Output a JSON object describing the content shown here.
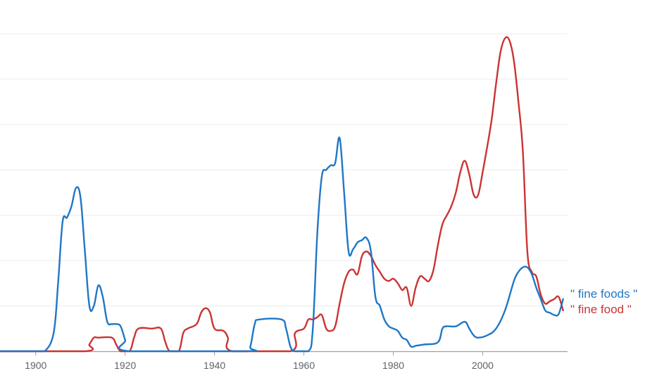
{
  "chart_data": {
    "type": "line",
    "title": "",
    "xlabel": "",
    "ylabel": "",
    "xlim": [
      1892,
      2019
    ],
    "ylim": [
      0,
      7
    ],
    "x_ticks": [
      1900,
      1920,
      1940,
      1960,
      1980,
      2000
    ],
    "y_gridlines": [
      1,
      2,
      3,
      4,
      5,
      6,
      7
    ],
    "y_tick_labels_visible": false,
    "grid": "horizontal",
    "legend_placement": "right-end-of-lines",
    "colors": {
      "fine_foods": "#1f77c6",
      "fine_food": "#cc3333"
    },
    "series": [
      {
        "name": "\" fine foods \"",
        "color": "#1f77c6",
        "points": [
          [
            1892,
            0.0
          ],
          [
            1900,
            0.0
          ],
          [
            1902,
            0.0
          ],
          [
            1904,
            0.4
          ],
          [
            1905,
            1.5
          ],
          [
            1906,
            2.85
          ],
          [
            1907,
            2.95
          ],
          [
            1908,
            3.2
          ],
          [
            1909,
            3.6
          ],
          [
            1910,
            3.4
          ],
          [
            1911,
            2.2
          ],
          [
            1912,
            1.0
          ],
          [
            1913,
            1.0
          ],
          [
            1914,
            1.45
          ],
          [
            1915,
            1.2
          ],
          [
            1916,
            0.65
          ],
          [
            1917,
            0.6
          ],
          [
            1918,
            0.6
          ],
          [
            1919,
            0.55
          ],
          [
            1920,
            0.25
          ],
          [
            1921,
            0.0
          ],
          [
            1947,
            0.0
          ],
          [
            1948,
            0.1
          ],
          [
            1949,
            0.6
          ],
          [
            1950,
            0.7
          ],
          [
            1955,
            0.7
          ],
          [
            1956,
            0.5
          ],
          [
            1957,
            0.1
          ],
          [
            1958,
            0.0
          ],
          [
            1961,
            0.0
          ],
          [
            1962,
            0.5
          ],
          [
            1963,
            2.6
          ],
          [
            1964,
            3.85
          ],
          [
            1965,
            4.0
          ],
          [
            1966,
            4.1
          ],
          [
            1967,
            4.15
          ],
          [
            1968,
            4.7
          ],
          [
            1969,
            3.5
          ],
          [
            1970,
            2.2
          ],
          [
            1971,
            2.25
          ],
          [
            1972,
            2.4
          ],
          [
            1973,
            2.45
          ],
          [
            1974,
            2.5
          ],
          [
            1975,
            2.2
          ],
          [
            1976,
            1.2
          ],
          [
            1977,
            1.0
          ],
          [
            1978,
            0.7
          ],
          [
            1979,
            0.55
          ],
          [
            1980,
            0.5
          ],
          [
            1981,
            0.45
          ],
          [
            1982,
            0.3
          ],
          [
            1983,
            0.25
          ],
          [
            1984,
            0.1
          ],
          [
            1985,
            0.12
          ],
          [
            1987,
            0.15
          ],
          [
            1990,
            0.2
          ],
          [
            1991,
            0.5
          ],
          [
            1992,
            0.55
          ],
          [
            1994,
            0.55
          ],
          [
            1996,
            0.65
          ],
          [
            1997,
            0.5
          ],
          [
            1998,
            0.35
          ],
          [
            1999,
            0.3
          ],
          [
            2001,
            0.35
          ],
          [
            2003,
            0.5
          ],
          [
            2005,
            0.9
          ],
          [
            2007,
            1.55
          ],
          [
            2008,
            1.75
          ],
          [
            2009,
            1.85
          ],
          [
            2010,
            1.85
          ],
          [
            2011,
            1.7
          ],
          [
            2012,
            1.4
          ],
          [
            2013,
            1.15
          ],
          [
            2014,
            0.9
          ],
          [
            2015,
            0.85
          ],
          [
            2016,
            0.8
          ],
          [
            2017,
            0.82
          ],
          [
            2018,
            1.15
          ]
        ]
      },
      {
        "name": "\" fine food \"",
        "color": "#cc3333",
        "points": [
          [
            1892,
            0.0
          ],
          [
            1911,
            0.0
          ],
          [
            1912,
            0.15
          ],
          [
            1913,
            0.3
          ],
          [
            1914,
            0.3
          ],
          [
            1917,
            0.3
          ],
          [
            1918,
            0.15
          ],
          [
            1919,
            0.0
          ],
          [
            1921,
            0.0
          ],
          [
            1922,
            0.3
          ],
          [
            1923,
            0.5
          ],
          [
            1926,
            0.5
          ],
          [
            1928,
            0.5
          ],
          [
            1929,
            0.2
          ],
          [
            1930,
            0.0
          ],
          [
            1932,
            0.0
          ],
          [
            1933,
            0.4
          ],
          [
            1934,
            0.5
          ],
          [
            1936,
            0.6
          ],
          [
            1937,
            0.85
          ],
          [
            1938,
            0.95
          ],
          [
            1939,
            0.85
          ],
          [
            1940,
            0.5
          ],
          [
            1942,
            0.45
          ],
          [
            1943,
            0.3
          ],
          [
            1944,
            0.0
          ],
          [
            1957,
            0.0
          ],
          [
            1958,
            0.4
          ],
          [
            1960,
            0.5
          ],
          [
            1961,
            0.7
          ],
          [
            1962,
            0.7
          ],
          [
            1963,
            0.75
          ],
          [
            1964,
            0.8
          ],
          [
            1965,
            0.5
          ],
          [
            1966,
            0.45
          ],
          [
            1967,
            0.55
          ],
          [
            1968,
            1.05
          ],
          [
            1969,
            1.5
          ],
          [
            1970,
            1.75
          ],
          [
            1971,
            1.8
          ],
          [
            1972,
            1.7
          ],
          [
            1973,
            2.1
          ],
          [
            1974,
            2.2
          ],
          [
            1975,
            2.1
          ],
          [
            1976,
            1.9
          ],
          [
            1977,
            1.75
          ],
          [
            1978,
            1.6
          ],
          [
            1979,
            1.55
          ],
          [
            1980,
            1.6
          ],
          [
            1981,
            1.5
          ],
          [
            1982,
            1.35
          ],
          [
            1983,
            1.4
          ],
          [
            1984,
            1.0
          ],
          [
            1985,
            1.4
          ],
          [
            1986,
            1.65
          ],
          [
            1987,
            1.6
          ],
          [
            1988,
            1.55
          ],
          [
            1989,
            1.8
          ],
          [
            1990,
            2.35
          ],
          [
            1991,
            2.8
          ],
          [
            1992,
            3.0
          ],
          [
            1993,
            3.2
          ],
          [
            1994,
            3.5
          ],
          [
            1995,
            3.95
          ],
          [
            1996,
            4.2
          ],
          [
            1997,
            3.9
          ],
          [
            1998,
            3.45
          ],
          [
            1999,
            3.45
          ],
          [
            2000,
            3.95
          ],
          [
            2001,
            4.5
          ],
          [
            2002,
            5.1
          ],
          [
            2003,
            5.9
          ],
          [
            2004,
            6.6
          ],
          [
            2005,
            6.9
          ],
          [
            2006,
            6.85
          ],
          [
            2007,
            6.4
          ],
          [
            2008,
            5.5
          ],
          [
            2009,
            4.4
          ],
          [
            2010,
            2.2
          ],
          [
            2011,
            1.75
          ],
          [
            2012,
            1.65
          ],
          [
            2013,
            1.25
          ],
          [
            2014,
            1.05
          ],
          [
            2015,
            1.1
          ],
          [
            2016,
            1.15
          ],
          [
            2017,
            1.2
          ],
          [
            2018,
            0.9
          ]
        ]
      }
    ]
  }
}
